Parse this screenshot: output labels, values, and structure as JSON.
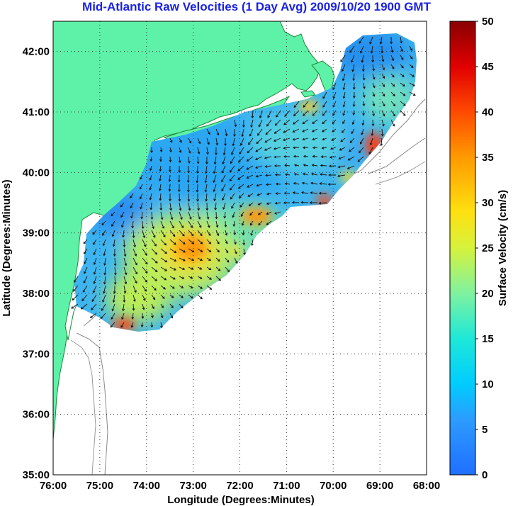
{
  "title": "Mid-Atlantic Raw Velocities (1 Day Avg) 2009/10/20 1900 GMT",
  "map": {
    "x_label": "Longitude (Degrees:Minutes)",
    "y_label": "Latitude (Degrees:Minutes)",
    "lon_ticks": [
      "76:00",
      "75:00",
      "74:00",
      "73:00",
      "72:00",
      "71:00",
      "70:00",
      "69:00",
      "68:00"
    ],
    "lat_ticks": [
      "35:00",
      "36:00",
      "37:00",
      "38:00",
      "39:00",
      "40:00",
      "41:00",
      "42:00"
    ],
    "lon_range": [
      -76,
      -68
    ],
    "lat_range": [
      35,
      42.5
    ],
    "grid": "dotted",
    "land_color": "#5ef2a8",
    "water_color": "#ffffff"
  },
  "colorbar": {
    "label": "Surface Velocity (cm/s)",
    "ticks": [
      "0",
      "5",
      "10",
      "15",
      "20",
      "25",
      "30",
      "35",
      "40",
      "45",
      "50"
    ],
    "min": 0,
    "max": 50,
    "colormap": "jet"
  }
}
